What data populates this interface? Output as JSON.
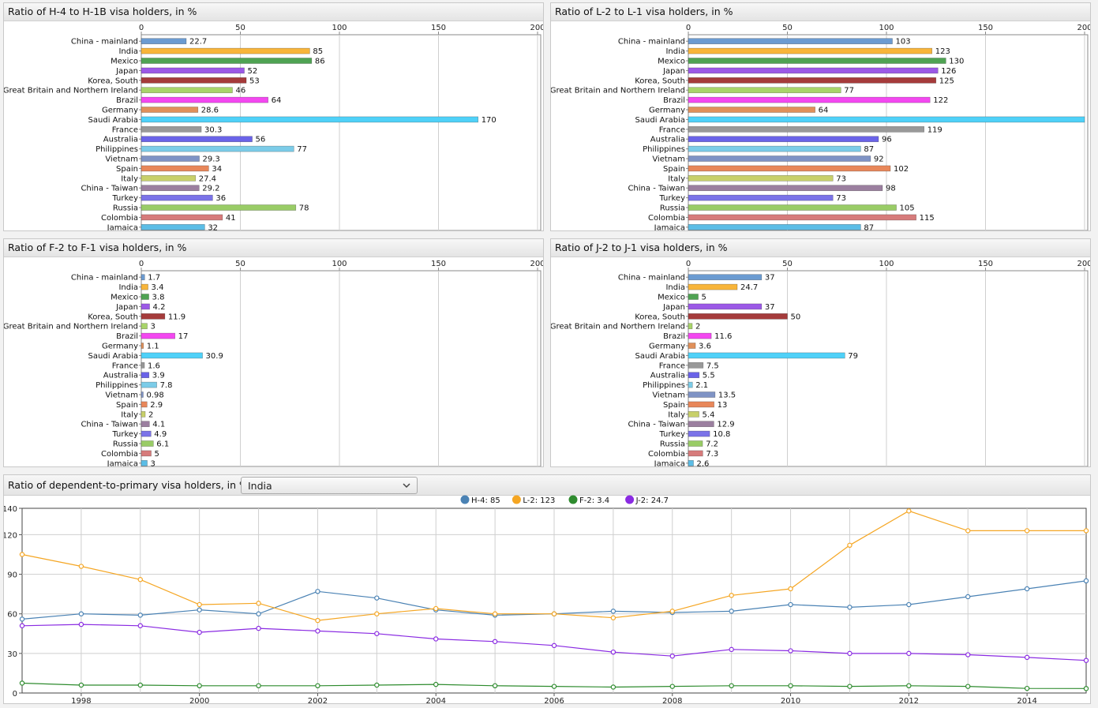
{
  "colors": {
    "countries": [
      "#6b9bd1",
      "#f8b53a",
      "#4fa353",
      "#9b59e6",
      "#a53b3b",
      "#a8d46a",
      "#f348f0",
      "#e0905a",
      "#4fd1f8",
      "#999999",
      "#6a63e8",
      "#7ccce8",
      "#7f93c5",
      "#e8875a",
      "#c8d06a",
      "#9b7f9f",
      "#7b73e8",
      "#99cc66",
      "#d67b7b",
      "#5bbde6"
    ],
    "line": {
      "H-4": "#4a82b4",
      "L-2": "#f5a623",
      "F-2": "#2e8b2e",
      "J-2": "#8a2be2"
    }
  },
  "bar_charts": [
    {
      "title": "Ratio of H-4 to H-1B visa holders, in %",
      "chart_data": {
        "type": "bar",
        "orientation": "horizontal",
        "categories": [
          "China - mainland",
          "India",
          "Mexico",
          "Japan",
          "Korea, South",
          "Great Britain and Northern Ireland",
          "Brazil",
          "Germany",
          "Saudi Arabia",
          "France",
          "Australia",
          "Philippines",
          "Vietnam",
          "Spain",
          "Italy",
          "China - Taiwan",
          "Turkey",
          "Russia",
          "Colombia",
          "Jamaica"
        ],
        "values": [
          22.7,
          85,
          86,
          52,
          53,
          46,
          64,
          28.6,
          170,
          30.3,
          56,
          77,
          29.3,
          34,
          27.4,
          29.2,
          36,
          78,
          41,
          32
        ],
        "labels": [
          "22.7",
          "85",
          "86",
          "52",
          "53",
          "46",
          "64",
          "28.6",
          "170",
          "30.3",
          "56",
          "77",
          "29.3",
          "34",
          "27.4",
          "29.2",
          "36",
          "78",
          "41",
          "32"
        ],
        "xlim": [
          0,
          200
        ],
        "ticks": [
          "0",
          "50",
          "100",
          "150",
          "200"
        ],
        "grid": true
      }
    },
    {
      "title": "Ratio of L-2 to L-1 visa holders, in %",
      "chart_data": {
        "type": "bar",
        "orientation": "horizontal",
        "categories": [
          "China - mainland",
          "India",
          "Mexico",
          "Japan",
          "Korea, South",
          "Great Britain and Northern Ireland",
          "Brazil",
          "Germany",
          "Saudi Arabia",
          "France",
          "Australia",
          "Philippines",
          "Vietnam",
          "Spain",
          "Italy",
          "China - Taiwan",
          "Turkey",
          "Russia",
          "Colombia",
          "Jamaica"
        ],
        "values": [
          103,
          123,
          130,
          126,
          125,
          77,
          122,
          64,
          210,
          119,
          96,
          87,
          92,
          102,
          73,
          98,
          73,
          105,
          115,
          87
        ],
        "labels": [
          "103",
          "123",
          "130",
          "126",
          "125",
          "77",
          "122",
          "64",
          "",
          "119",
          "96",
          "87",
          "92",
          "102",
          "73",
          "98",
          "73",
          "105",
          "115",
          "87"
        ],
        "xlim": [
          0,
          200
        ],
        "ticks": [
          "0",
          "50",
          "100",
          "150",
          "200"
        ],
        "grid": true
      }
    },
    {
      "title": "Ratio of F-2 to F-1 visa holders, in %",
      "chart_data": {
        "type": "bar",
        "orientation": "horizontal",
        "categories": [
          "China - mainland",
          "India",
          "Mexico",
          "Japan",
          "Korea, South",
          "Great Britain and Northern Ireland",
          "Brazil",
          "Germany",
          "Saudi Arabia",
          "France",
          "Australia",
          "Philippines",
          "Vietnam",
          "Spain",
          "Italy",
          "China - Taiwan",
          "Turkey",
          "Russia",
          "Colombia",
          "Jamaica"
        ],
        "values": [
          1.7,
          3.4,
          3.8,
          4.2,
          11.9,
          3,
          17,
          1.1,
          30.9,
          1.6,
          3.9,
          7.8,
          0.98,
          2.9,
          2,
          4.1,
          4.9,
          6.1,
          5,
          3
        ],
        "labels": [
          "1.7",
          "3.4",
          "3.8",
          "4.2",
          "11.9",
          "3",
          "17",
          "1.1",
          "30.9",
          "1.6",
          "3.9",
          "7.8",
          "0.98",
          "2.9",
          "2",
          "4.1",
          "4.9",
          "6.1",
          "5",
          "3"
        ],
        "xlim": [
          0,
          200
        ],
        "ticks": [
          "0",
          "50",
          "100",
          "150",
          "200"
        ],
        "grid": true
      }
    },
    {
      "title": "Ratio of J-2 to J-1 visa holders, in %",
      "chart_data": {
        "type": "bar",
        "orientation": "horizontal",
        "categories": [
          "China - mainland",
          "India",
          "Mexico",
          "Japan",
          "Korea, South",
          "Great Britain and Northern Ireland",
          "Brazil",
          "Germany",
          "Saudi Arabia",
          "France",
          "Australia",
          "Philippines",
          "Vietnam",
          "Spain",
          "Italy",
          "China - Taiwan",
          "Turkey",
          "Russia",
          "Colombia",
          "Jamaica"
        ],
        "values": [
          37,
          24.7,
          5,
          37,
          50,
          2,
          11.6,
          3.6,
          79,
          7.5,
          5.5,
          2.1,
          13.5,
          13,
          5.4,
          12.9,
          10.8,
          7.2,
          7.3,
          2.6
        ],
        "labels": [
          "37",
          "24.7",
          "5",
          "37",
          "50",
          "2",
          "11.6",
          "3.6",
          "79",
          "7.5",
          "5.5",
          "2.1",
          "13.5",
          "13",
          "5.4",
          "12.9",
          "10.8",
          "7.2",
          "7.3",
          "2.6"
        ],
        "xlim": [
          0,
          200
        ],
        "ticks": [
          "0",
          "50",
          "100",
          "150",
          "200"
        ],
        "grid": true
      }
    }
  ],
  "line_chart": {
    "title": "Ratio of dependent-to-primary visa holders, in %",
    "country_select": {
      "selected": "India"
    },
    "chart_data": {
      "type": "line",
      "x": [
        1997,
        1998,
        1999,
        2000,
        2001,
        2002,
        2003,
        2004,
        2005,
        2006,
        2007,
        2008,
        2009,
        2010,
        2011,
        2012,
        2013,
        2014,
        2015
      ],
      "series": [
        {
          "name": "H-4",
          "legend": "H-4: 85",
          "values": [
            56,
            60,
            59,
            63,
            60,
            77,
            72,
            63,
            59,
            60,
            62,
            61,
            62,
            67,
            65,
            67,
            73,
            79,
            85
          ]
        },
        {
          "name": "L-2",
          "legend": "L-2: 123",
          "values": [
            105,
            96,
            86,
            67,
            68,
            55,
            60,
            64,
            60,
            60,
            57,
            62,
            74,
            79,
            112,
            138,
            123,
            123,
            123
          ]
        },
        {
          "name": "F-2",
          "legend": "F-2: 3.4",
          "values": [
            7.5,
            6,
            6,
            5.5,
            5.5,
            5.5,
            6,
            6.5,
            5.5,
            5,
            4.5,
            5,
            5.5,
            5.5,
            5,
            5.5,
            5,
            3.5,
            3.4
          ]
        },
        {
          "name": "J-2",
          "legend": "J-2: 24.7",
          "values": [
            51,
            52,
            51,
            46,
            49,
            47,
            45,
            41,
            39,
            36,
            31,
            28,
            33,
            32,
            30,
            30,
            29,
            27,
            24.7
          ]
        }
      ],
      "ylim": [
        0,
        140
      ],
      "yticks": [
        "0",
        "30",
        "60",
        "90",
        "120",
        "140"
      ],
      "xticks": [
        "1998",
        "2000",
        "2002",
        "2004",
        "2006",
        "2008",
        "2010",
        "2012",
        "2014"
      ],
      "grid": true,
      "legend_position": "top-center"
    }
  }
}
